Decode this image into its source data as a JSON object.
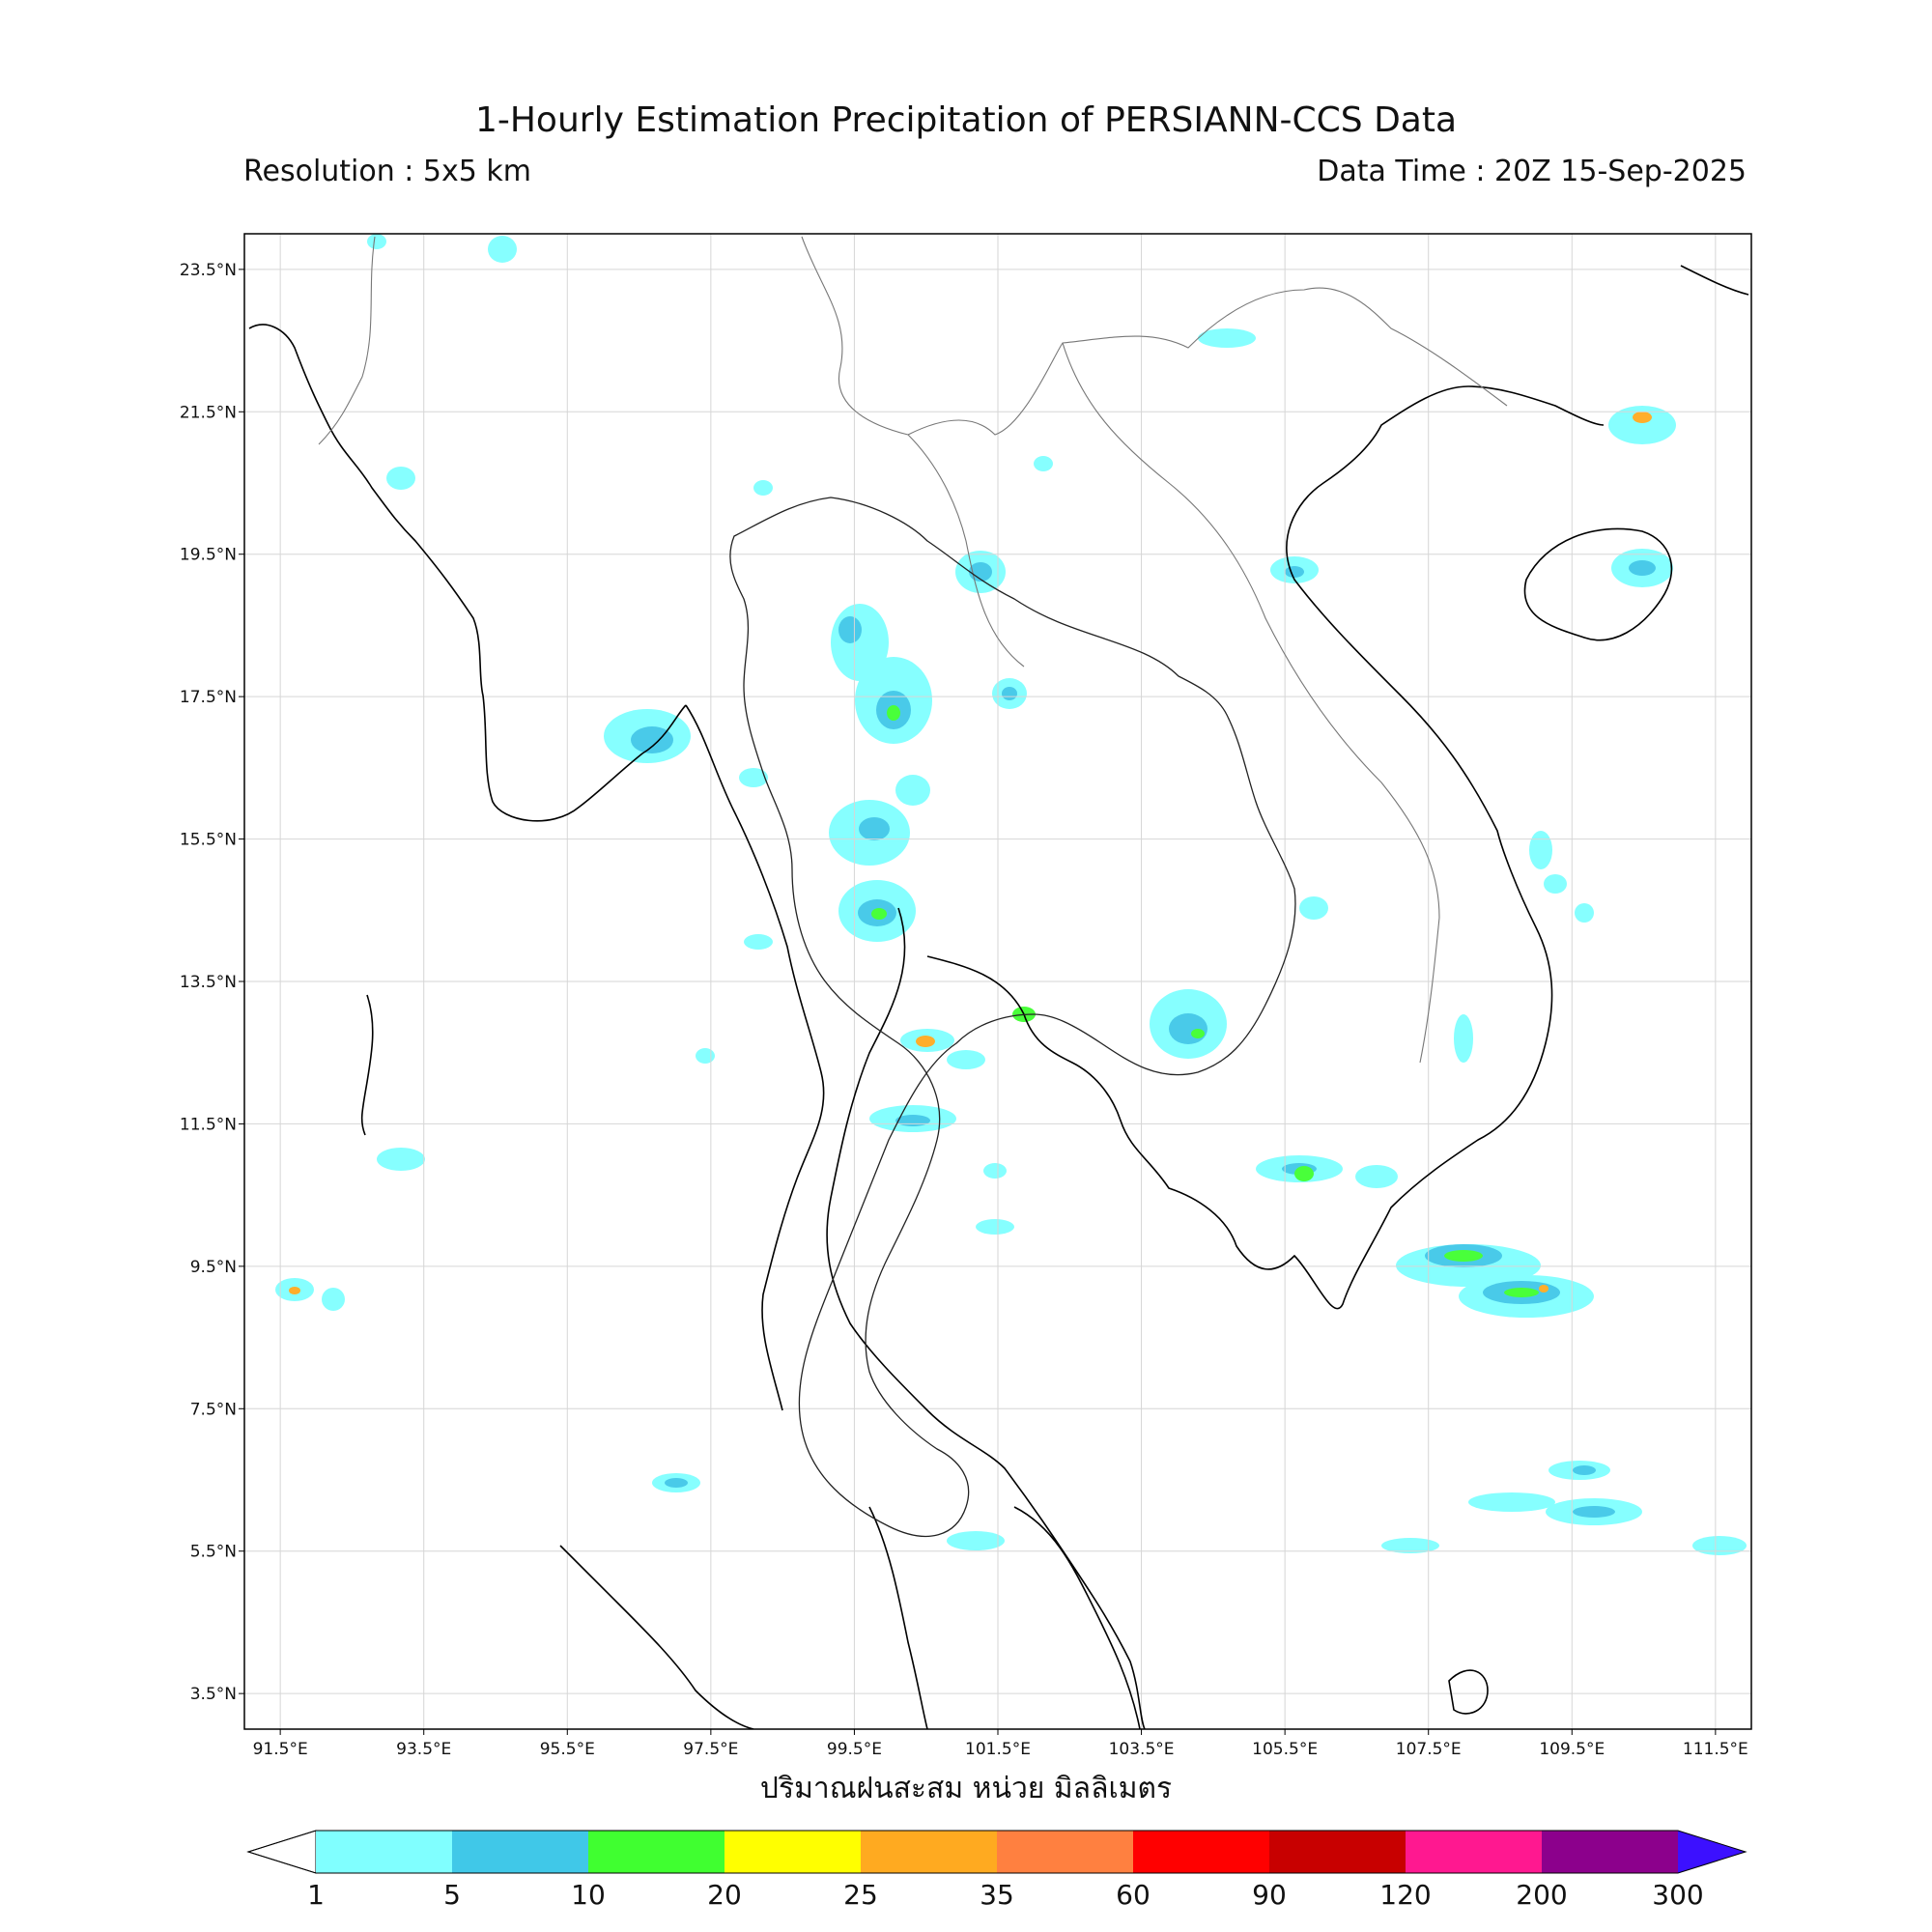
{
  "title": "1-Hourly Estimation Precipitation of PERSIANN-CCS Data",
  "resolution": "Resolution : 5x5 km",
  "data_time": "Data Time : 20Z 15-Sep-2025",
  "unit_label": "ปริมาณฝนสะสม หน่วย มิลลิเมตร",
  "map": {
    "lon_range": [
      91.0,
      112.0
    ],
    "lat_range": [
      3.0,
      24.0
    ],
    "lon_ticks": [
      "91.5°E",
      "93.5°E",
      "95.5°E",
      "97.5°E",
      "99.5°E",
      "101.5°E",
      "103.5°E",
      "105.5°E",
      "107.5°E",
      "109.5°E",
      "111.5°E"
    ],
    "lat_ticks": [
      "23.5°N",
      "21.5°N",
      "19.5°N",
      "17.5°N",
      "15.5°N",
      "13.5°N",
      "11.5°N",
      "9.5°N",
      "7.5°N",
      "5.5°N",
      "3.5°N"
    ],
    "grid": true
  },
  "colorbar": {
    "ticks": [
      "1",
      "5",
      "10",
      "20",
      "25",
      "35",
      "60",
      "90",
      "120",
      "200",
      "300"
    ],
    "colors": [
      "#80ffff",
      "#40c8e8",
      "#40ff30",
      "#ffff00",
      "#ffaa20",
      "#ff8040",
      "#ff0000",
      "#c80000",
      "#ff1890",
      "#8c008c"
    ],
    "extend_low": "#ffffff",
    "extend_high": "#3c10ff"
  }
}
